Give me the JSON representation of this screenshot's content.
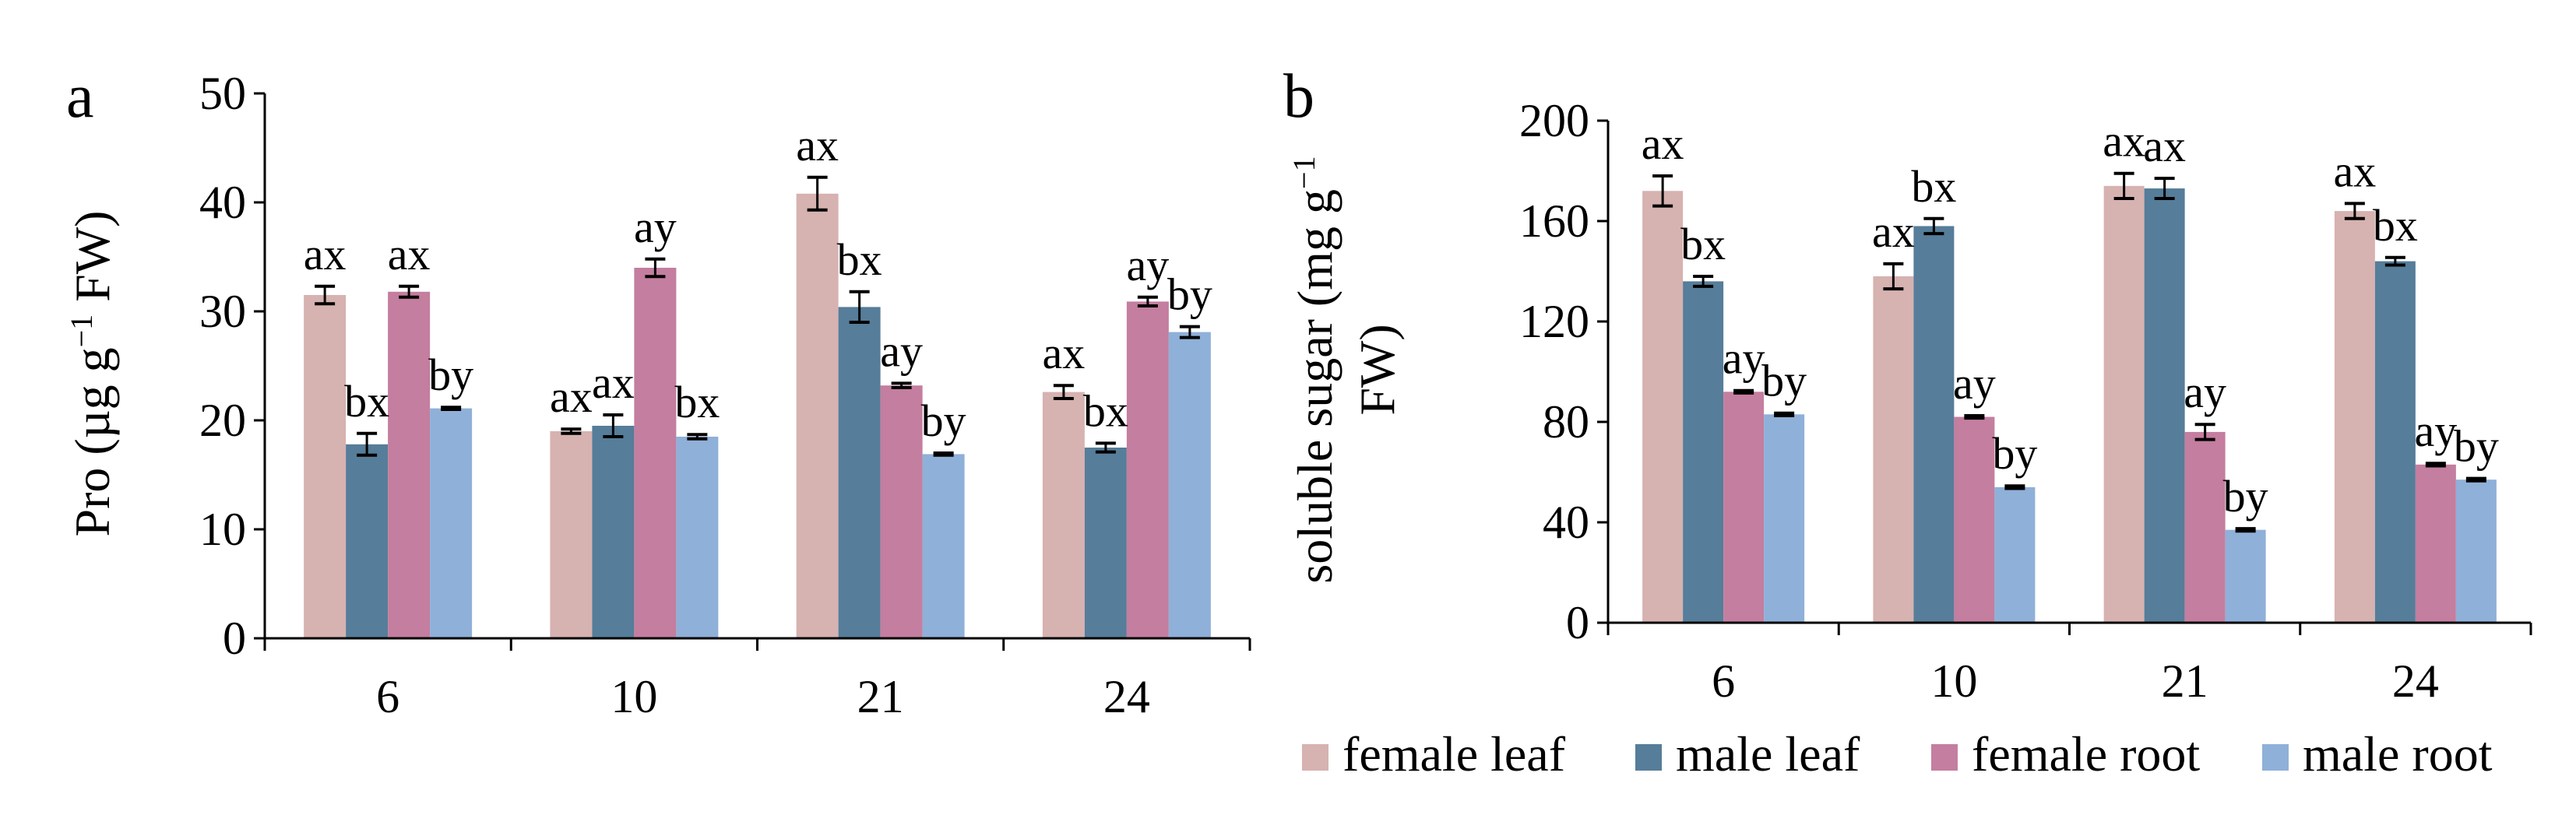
{
  "legend": {
    "entries": [
      "female leaf",
      "male leaf",
      "female root",
      "male root"
    ],
    "placement": "bottom-right"
  },
  "chart_data": [
    {
      "type": "bar",
      "panel_label": "a",
      "categories": [
        "6",
        "10",
        "21",
        "24"
      ],
      "ylabel_main": "Pro (µg g",
      "ylabel_sup": "−1",
      "ylabel_tail": " FW)",
      "ylim": [
        0,
        50
      ],
      "yticks": [
        0,
        10,
        20,
        30,
        40,
        50
      ],
      "series": [
        {
          "name": "female leaf",
          "color": "#d6b2b0",
          "values": [
            31.5,
            19.0,
            40.8,
            22.6
          ],
          "errors": [
            0.8,
            0.2,
            1.5,
            0.6
          ],
          "labels": [
            "ax",
            "ax",
            "ax",
            "ax"
          ]
        },
        {
          "name": "male leaf",
          "color": "#567d99",
          "values": [
            17.8,
            19.5,
            30.4,
            17.5
          ],
          "errors": [
            1.0,
            1.0,
            1.4,
            0.4
          ],
          "labels": [
            "bx",
            "ax",
            "bx",
            "bx"
          ]
        },
        {
          "name": "female root",
          "color": "#c47e9f",
          "values": [
            31.8,
            34.0,
            23.2,
            30.9
          ],
          "errors": [
            0.5,
            0.8,
            0.2,
            0.4
          ],
          "labels": [
            "ax",
            "ay",
            "ay",
            "ay"
          ]
        },
        {
          "name": "male root",
          "color": "#8fb0d8",
          "values": [
            21.1,
            18.5,
            16.9,
            28.1
          ],
          "errors": [
            0.1,
            0.2,
            0.1,
            0.5
          ],
          "labels": [
            "by",
            "bx",
            "by",
            "by"
          ]
        }
      ]
    },
    {
      "type": "bar",
      "panel_label": "b",
      "categories": [
        "6",
        "10",
        "21",
        "24"
      ],
      "ylabel_line1_main": "soluble sugar  (mg g",
      "ylabel_line1_sup": "−1",
      "ylabel_line2": "FW)",
      "ylim": [
        0,
        200
      ],
      "yticks": [
        0,
        40,
        80,
        120,
        160,
        200
      ],
      "series": [
        {
          "name": "female leaf",
          "color": "#d6b2b0",
          "values": [
            172,
            138,
            174,
            164
          ],
          "errors": [
            6,
            5,
            5,
            3
          ],
          "labels": [
            "ax",
            "ax",
            "ax",
            "ax"
          ]
        },
        {
          "name": "male leaf",
          "color": "#567d99",
          "values": [
            136,
            158,
            173,
            144
          ],
          "errors": [
            2,
            3,
            4,
            1.5
          ],
          "labels": [
            "bx",
            "bx",
            "ax",
            "bx"
          ]
        },
        {
          "name": "female root",
          "color": "#c47e9f",
          "values": [
            92,
            82,
            76,
            63
          ],
          "errors": [
            0.5,
            0.5,
            3,
            0.5
          ],
          "labels": [
            "ay",
            "ay",
            "ay",
            "ay"
          ]
        },
        {
          "name": "male root",
          "color": "#8fb0d8",
          "values": [
            83,
            54,
            37,
            57
          ],
          "errors": [
            0.5,
            0.5,
            0.5,
            0.5
          ],
          "labels": [
            "by",
            "by",
            "by",
            "by"
          ]
        }
      ]
    }
  ]
}
